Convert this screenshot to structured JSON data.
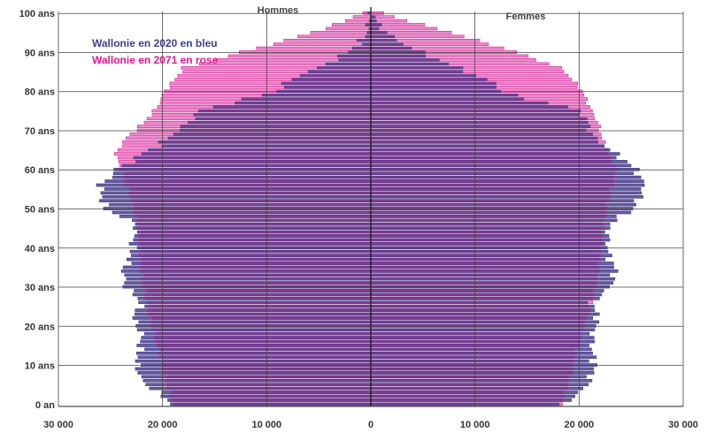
{
  "chart_data": {
    "type": "bar",
    "orientation": "horizontal-pyramid",
    "title": "",
    "labels": {
      "male": "Hommes",
      "female": "Femmes"
    },
    "legend": [
      {
        "text": "Wallonie en 2020  en bleu",
        "color": "#3d3f8f"
      },
      {
        "text": "Wallonie en 2071 en rose",
        "color": "#e0188c"
      }
    ],
    "x_ticks": [
      "30 000",
      "20 000",
      "10 000",
      "0",
      "10 000",
      "20 000",
      "30 000"
    ],
    "xlim": [
      -30000,
      30000
    ],
    "age_ticks": [
      "0 an",
      "10 ans",
      "20 ans",
      "30 ans",
      "40 ans",
      "50 ans",
      "60 ans",
      "70 ans",
      "80 ans",
      "90 ans",
      "100 ans"
    ],
    "ylim": [
      0,
      100
    ],
    "colors": {
      "s2020_fill": "#6a5a9c",
      "s2020_line": "#3d3f8f",
      "s2071_fill": "#e58fd0",
      "s2071_line": "#e0188c",
      "overlap": "#7a3f8f",
      "grid": "#444444"
    },
    "series": [
      {
        "name": "Wallonie en 2020",
        "male_anchors": [
          [
            0,
            19000
          ],
          [
            2,
            20000
          ],
          [
            4,
            21000
          ],
          [
            6,
            22000
          ],
          [
            10,
            22500
          ],
          [
            14,
            22200
          ],
          [
            18,
            22000
          ],
          [
            22,
            22800
          ],
          [
            26,
            22000
          ],
          [
            30,
            23500
          ],
          [
            34,
            23800
          ],
          [
            38,
            23000
          ],
          [
            42,
            22800
          ],
          [
            46,
            22500
          ],
          [
            50,
            25500
          ],
          [
            53,
            25800
          ],
          [
            56,
            26000
          ],
          [
            58,
            25000
          ],
          [
            60,
            24500
          ],
          [
            62,
            23000
          ],
          [
            64,
            22000
          ],
          [
            66,
            20500
          ],
          [
            68,
            19500
          ],
          [
            70,
            18500
          ],
          [
            72,
            17500
          ],
          [
            75,
            16500
          ],
          [
            78,
            12000
          ],
          [
            80,
            9000
          ],
          [
            82,
            8200
          ],
          [
            84,
            7000
          ],
          [
            86,
            5000
          ],
          [
            88,
            3500
          ],
          [
            90,
            2200
          ],
          [
            92,
            1200
          ],
          [
            94,
            600
          ],
          [
            96,
            300
          ],
          [
            98,
            150
          ],
          [
            100,
            60
          ]
        ],
        "female_anchors": [
          [
            0,
            18500
          ],
          [
            2,
            19500
          ],
          [
            4,
            20500
          ],
          [
            6,
            21000
          ],
          [
            10,
            21500
          ],
          [
            14,
            21200
          ],
          [
            18,
            21300
          ],
          [
            22,
            21800
          ],
          [
            26,
            21200
          ],
          [
            30,
            23000
          ],
          [
            34,
            23500
          ],
          [
            38,
            22800
          ],
          [
            42,
            22700
          ],
          [
            46,
            22900
          ],
          [
            50,
            25200
          ],
          [
            53,
            25800
          ],
          [
            56,
            26300
          ],
          [
            58,
            25800
          ],
          [
            60,
            25500
          ],
          [
            62,
            24500
          ],
          [
            64,
            23500
          ],
          [
            66,
            22500
          ],
          [
            68,
            21500
          ],
          [
            70,
            21000
          ],
          [
            72,
            20800
          ],
          [
            74,
            20500
          ],
          [
            76,
            19000
          ],
          [
            78,
            15000
          ],
          [
            80,
            12500
          ],
          [
            82,
            12000
          ],
          [
            84,
            10000
          ],
          [
            86,
            8500
          ],
          [
            88,
            6500
          ],
          [
            90,
            4800
          ],
          [
            92,
            3200
          ],
          [
            94,
            2000
          ],
          [
            96,
            1100
          ],
          [
            98,
            500
          ],
          [
            100,
            200
          ]
        ]
      },
      {
        "name": "Wallonie en 2071",
        "male_anchors": [
          [
            0,
            19000
          ],
          [
            4,
            19500
          ],
          [
            8,
            19900
          ],
          [
            12,
            20200
          ],
          [
            16,
            20600
          ],
          [
            20,
            21000
          ],
          [
            26,
            21500
          ],
          [
            32,
            22000
          ],
          [
            38,
            22200
          ],
          [
            44,
            22300
          ],
          [
            50,
            22700
          ],
          [
            56,
            23500
          ],
          [
            60,
            24000
          ],
          [
            64,
            24500
          ],
          [
            68,
            23500
          ],
          [
            72,
            21800
          ],
          [
            76,
            20500
          ],
          [
            80,
            19800
          ],
          [
            84,
            18500
          ],
          [
            86,
            18000
          ],
          [
            88,
            15000
          ],
          [
            90,
            12500
          ],
          [
            92,
            9500
          ],
          [
            94,
            7000
          ],
          [
            96,
            4500
          ],
          [
            98,
            2500
          ],
          [
            100,
            900
          ]
        ],
        "female_anchors": [
          [
            0,
            18300
          ],
          [
            4,
            18800
          ],
          [
            8,
            19300
          ],
          [
            12,
            19600
          ],
          [
            16,
            20000
          ],
          [
            20,
            20500
          ],
          [
            26,
            21200
          ],
          [
            32,
            21800
          ],
          [
            38,
            22000
          ],
          [
            44,
            22300
          ],
          [
            50,
            22600
          ],
          [
            56,
            23200
          ],
          [
            60,
            23700
          ],
          [
            64,
            22800
          ],
          [
            68,
            22200
          ],
          [
            72,
            21800
          ],
          [
            76,
            21000
          ],
          [
            80,
            20300
          ],
          [
            84,
            19000
          ],
          [
            86,
            18200
          ],
          [
            88,
            16000
          ],
          [
            90,
            14000
          ],
          [
            92,
            11500
          ],
          [
            94,
            9000
          ],
          [
            96,
            6500
          ],
          [
            98,
            3500
          ],
          [
            100,
            1200
          ]
        ]
      }
    ]
  }
}
